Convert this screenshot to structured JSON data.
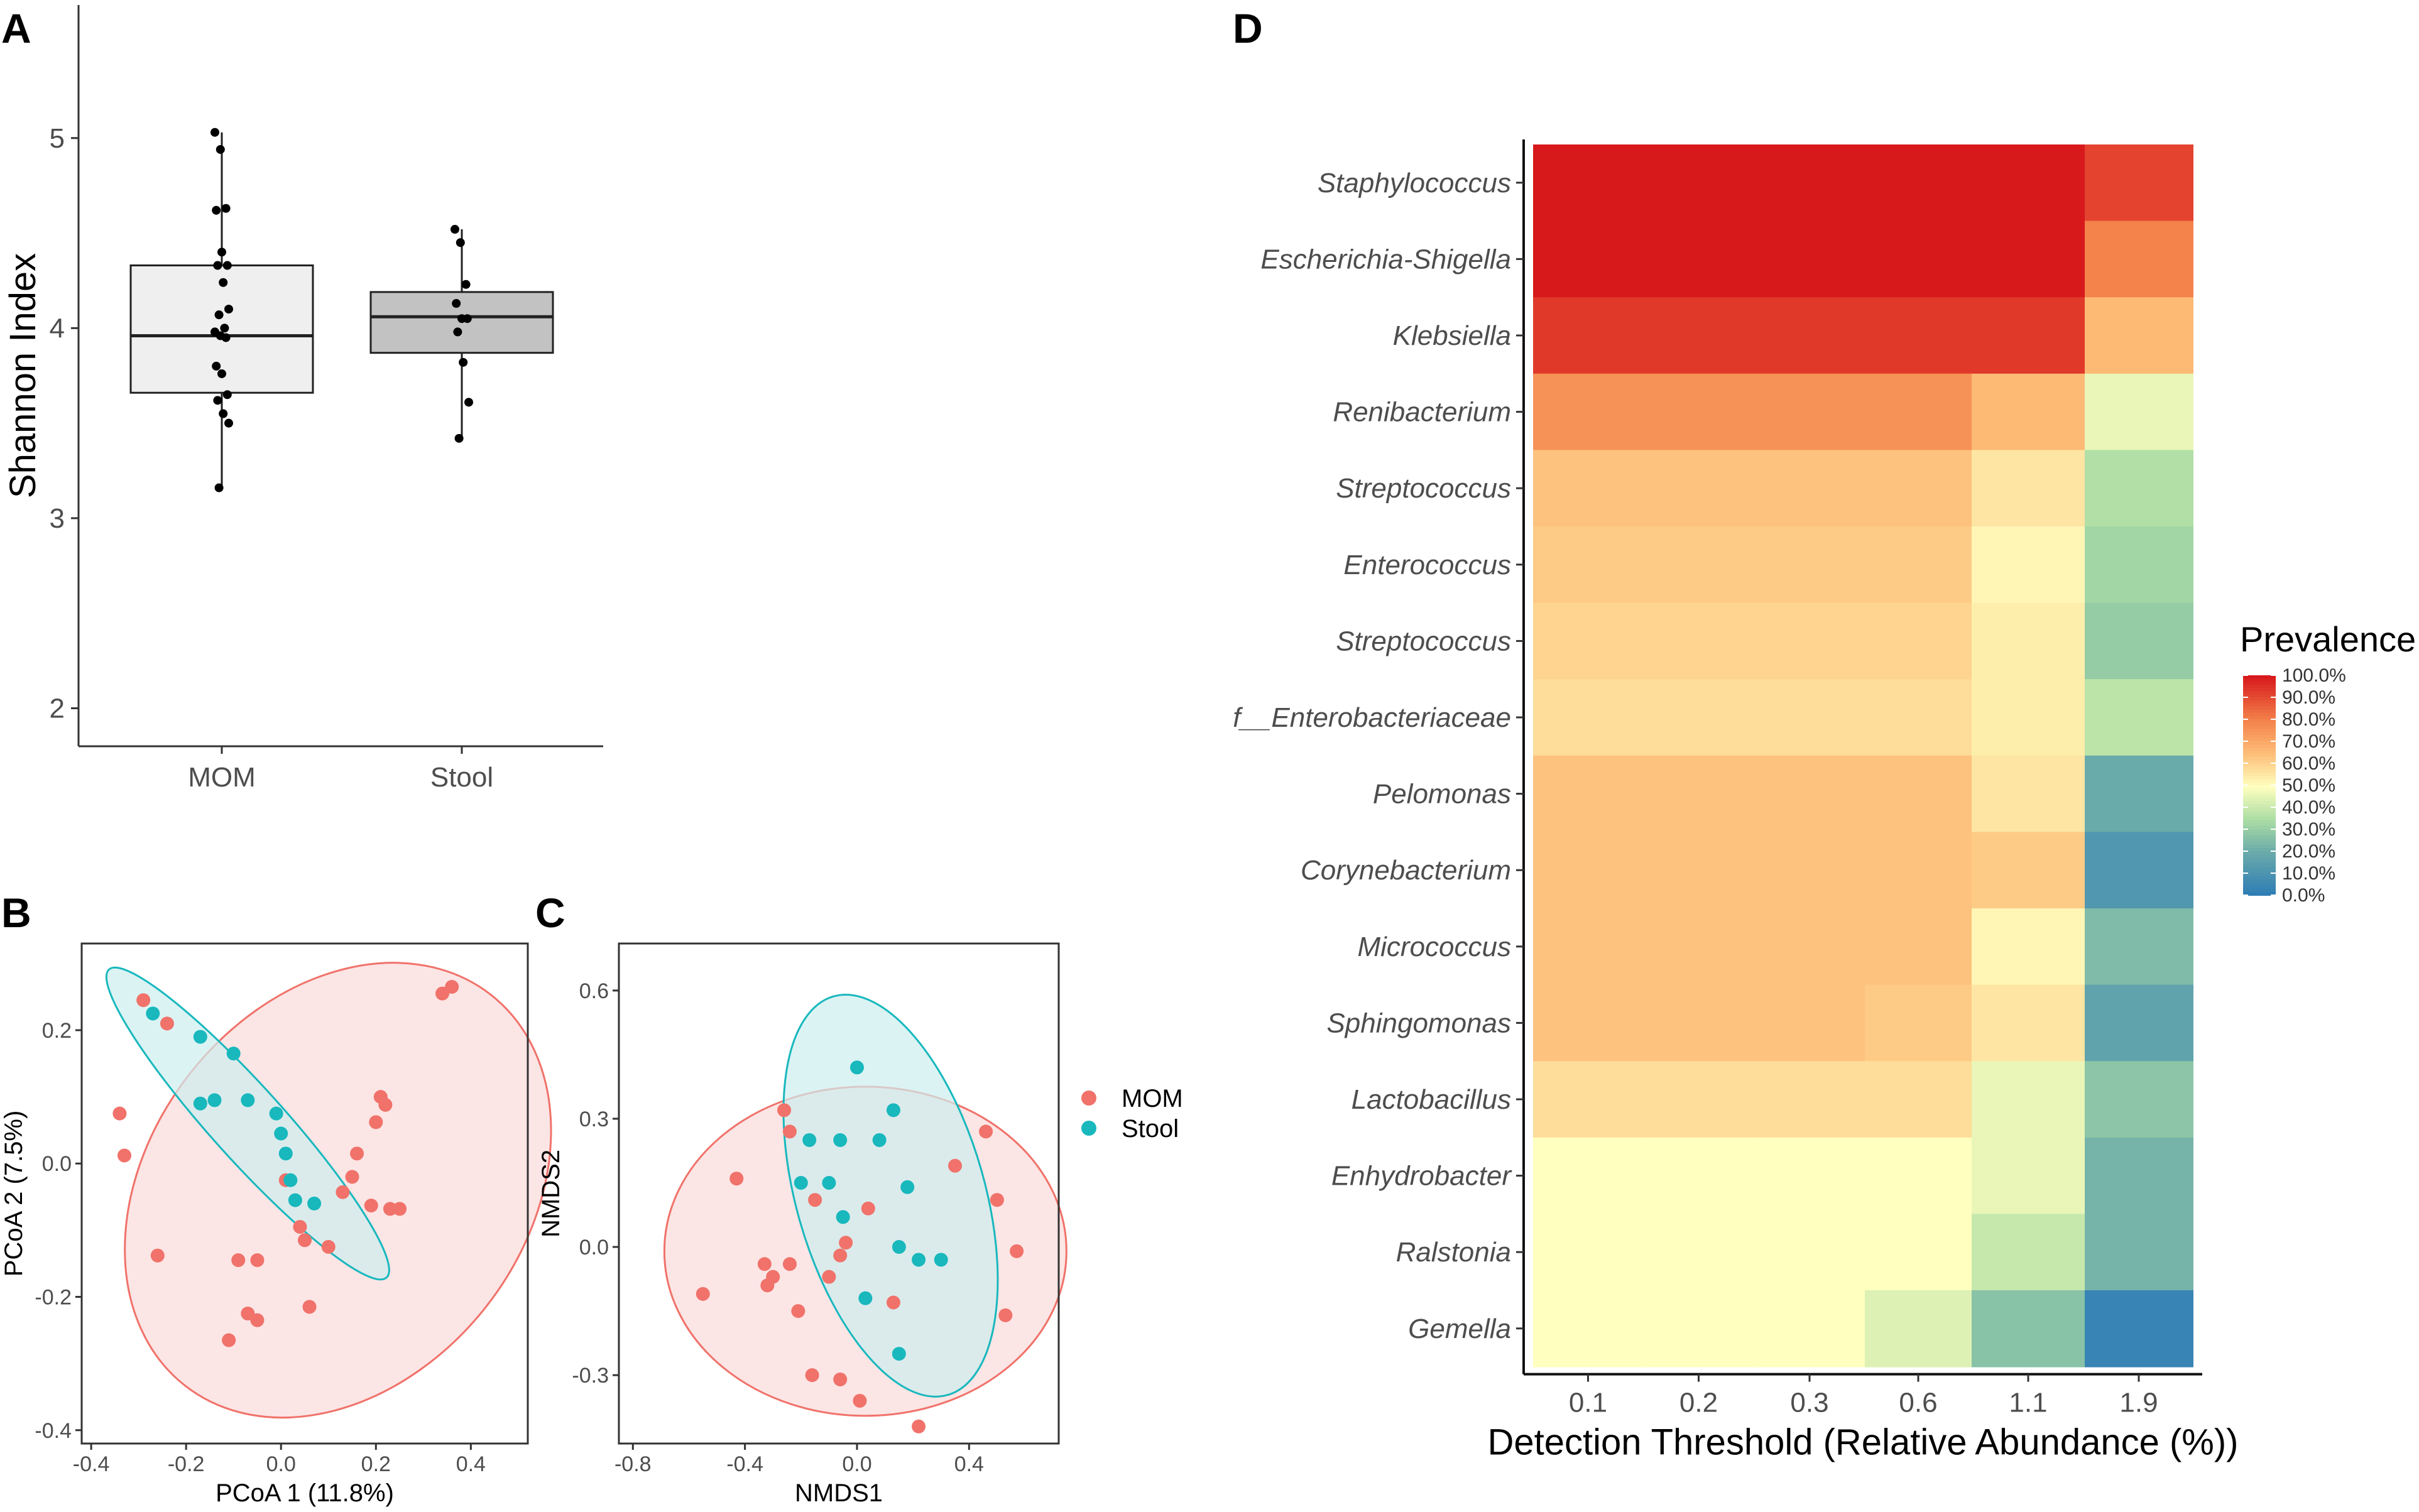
{
  "panels": {
    "A": "A",
    "B": "B",
    "C": "C",
    "D": "D"
  },
  "colors": {
    "mom": "#F0726A",
    "stool": "#18B8BD",
    "mom_fill": "#FBDADA",
    "stool_fill": "#CDEEF0",
    "box_mom": "#EFEFEF",
    "box_stool": "#C2C2C2"
  },
  "chart_data": [
    {
      "id": "A",
      "type": "box",
      "ylabel": "Shannon Index",
      "ylim": [
        1.8,
        5.7
      ],
      "yticks": [
        2,
        3,
        4,
        5
      ],
      "categories": [
        "MOM",
        "Stool"
      ],
      "boxes": [
        {
          "name": "MOM",
          "q1": 3.66,
          "median": 3.96,
          "q3": 4.33,
          "whisker_low": 3.16,
          "whisker_high": 5.03,
          "points": [
            5.03,
            4.94,
            4.63,
            4.62,
            4.4,
            4.33,
            4.33,
            4.24,
            4.1,
            4.07,
            4.0,
            3.98,
            3.96,
            3.95,
            3.8,
            3.76,
            3.65,
            3.62,
            3.55,
            3.5,
            3.16
          ]
        },
        {
          "name": "Stool",
          "q1": 3.87,
          "median": 4.06,
          "q3": 4.19,
          "whisker_low": 3.42,
          "whisker_high": 4.52,
          "points": [
            4.52,
            4.45,
            4.23,
            4.13,
            4.05,
            4.05,
            3.98,
            3.82,
            3.61,
            3.42
          ]
        }
      ]
    },
    {
      "id": "B",
      "type": "scatter",
      "xlabel": "PCoA 1 (11.8%)",
      "ylabel": "PCoA 2 (7.5%)",
      "xlim": [
        -0.42,
        0.52
      ],
      "ylim": [
        -0.42,
        0.33
      ],
      "xticks": [
        "-0.4",
        "-0.2",
        "0.0",
        "0.2",
        "0.4"
      ],
      "yticks": [
        "-0.4",
        "-0.2",
        "0.0",
        "0.2"
      ],
      "series": [
        {
          "name": "MOM",
          "points": [
            [
              -0.29,
              0.245
            ],
            [
              -0.34,
              0.075
            ],
            [
              -0.33,
              0.012
            ],
            [
              -0.26,
              -0.138
            ],
            [
              -0.24,
              0.21
            ],
            [
              -0.11,
              -0.265
            ],
            [
              -0.09,
              -0.145
            ],
            [
              -0.07,
              -0.225
            ],
            [
              -0.05,
              -0.235
            ],
            [
              -0.05,
              -0.145
            ],
            [
              0.01,
              -0.025
            ],
            [
              0.04,
              -0.095
            ],
            [
              0.05,
              -0.115
            ],
            [
              0.06,
              -0.215
            ],
            [
              0.1,
              -0.125
            ],
            [
              0.13,
              -0.043
            ],
            [
              0.16,
              0.015
            ],
            [
              0.19,
              -0.063
            ],
            [
              0.2,
              0.062
            ],
            [
              0.21,
              0.1
            ],
            [
              0.22,
              0.088
            ],
            [
              0.23,
              -0.068
            ],
            [
              0.25,
              -0.068
            ],
            [
              0.34,
              0.255
            ],
            [
              0.36,
              0.265
            ],
            [
              0.15,
              -0.02
            ]
          ]
        },
        {
          "name": "Stool",
          "points": [
            [
              -0.27,
              0.225
            ],
            [
              -0.17,
              0.19
            ],
            [
              -0.14,
              0.095
            ],
            [
              -0.1,
              0.165
            ],
            [
              -0.07,
              0.095
            ],
            [
              -0.01,
              0.075
            ],
            [
              0.0,
              0.045
            ],
            [
              0.01,
              0.015
            ],
            [
              0.02,
              -0.025
            ],
            [
              0.03,
              -0.055
            ],
            [
              0.07,
              -0.06
            ],
            [
              -0.17,
              0.09
            ]
          ]
        }
      ]
    },
    {
      "id": "C",
      "type": "scatter",
      "xlabel": "NMDS1",
      "ylabel": "NMDS2",
      "xlim": [
        -0.85,
        0.72
      ],
      "ylim": [
        -0.46,
        0.71
      ],
      "xticks": [
        "-0.8",
        "-0.4",
        "0.0",
        "0.4"
      ],
      "yticks": [
        "-0.3",
        "0.0",
        "0.3",
        "0.6"
      ],
      "series": [
        {
          "name": "MOM",
          "points": [
            [
              -0.55,
              -0.11
            ],
            [
              -0.43,
              0.16
            ],
            [
              -0.33,
              -0.04
            ],
            [
              -0.32,
              -0.09
            ],
            [
              -0.3,
              -0.07
            ],
            [
              -0.26,
              0.32
            ],
            [
              -0.24,
              0.27
            ],
            [
              -0.24,
              -0.04
            ],
            [
              -0.21,
              -0.15
            ],
            [
              -0.16,
              -0.3
            ],
            [
              -0.1,
              -0.07
            ],
            [
              -0.06,
              -0.02
            ],
            [
              -0.06,
              -0.31
            ],
            [
              -0.04,
              0.01
            ],
            [
              0.01,
              -0.36
            ],
            [
              0.04,
              0.09
            ],
            [
              0.13,
              -0.13
            ],
            [
              0.22,
              -0.42
            ],
            [
              0.46,
              0.27
            ],
            [
              0.5,
              0.11
            ],
            [
              0.53,
              -0.16
            ],
            [
              0.57,
              -0.01
            ],
            [
              -0.15,
              0.11
            ],
            [
              0.35,
              0.19
            ]
          ]
        },
        {
          "name": "Stool",
          "points": [
            [
              -0.2,
              0.15
            ],
            [
              -0.17,
              0.25
            ],
            [
              -0.06,
              0.25
            ],
            [
              -0.05,
              0.07
            ],
            [
              0.0,
              0.42
            ],
            [
              0.03,
              -0.12
            ],
            [
              0.08,
              0.25
            ],
            [
              0.13,
              0.32
            ],
            [
              0.15,
              0.0
            ],
            [
              0.15,
              -0.25
            ],
            [
              0.18,
              0.14
            ],
            [
              0.22,
              -0.03
            ],
            [
              0.3,
              -0.03
            ],
            [
              -0.1,
              0.15
            ]
          ]
        }
      ]
    },
    {
      "id": "D",
      "type": "heatmap",
      "xlabel": "Detection Threshold (Relative Abundance (%))",
      "legend_title": "Prevalence",
      "xticks": [
        "0.1",
        "0.2",
        "0.3",
        "0.6",
        "1.1",
        "1.9"
      ],
      "rows": [
        "Staphylococcus",
        "Escherichia-Shigella",
        "Klebsiella",
        "Renibacterium",
        "Streptococcus",
        "Enterococcus",
        "Streptococcus",
        "f__Enterobacteriaceae",
        "Pelomonas",
        "Corynebacterium",
        "Micrococcus",
        "Sphingomonas",
        "Lactobacillus",
        "Enhydrobacter",
        "Ralstonia",
        "Gemella"
      ],
      "values": [
        [
          100,
          100,
          100,
          100,
          100,
          92
        ],
        [
          100,
          100,
          100,
          100,
          100,
          80
        ],
        [
          94,
          94,
          94,
          94,
          94,
          66
        ],
        [
          76,
          76,
          76,
          76,
          66,
          46
        ],
        [
          64,
          64,
          64,
          64,
          56,
          36
        ],
        [
          62,
          62,
          62,
          62,
          52,
          33
        ],
        [
          60,
          60,
          60,
          60,
          54,
          30
        ],
        [
          58,
          58,
          58,
          58,
          54,
          38
        ],
        [
          64,
          64,
          64,
          64,
          56,
          20
        ],
        [
          64,
          64,
          64,
          64,
          62,
          12
        ],
        [
          64,
          64,
          64,
          64,
          52,
          25
        ],
        [
          64,
          64,
          64,
          62,
          56,
          17
        ],
        [
          58,
          58,
          58,
          58,
          46,
          28
        ],
        [
          50,
          50,
          50,
          50,
          46,
          23
        ],
        [
          50,
          50,
          50,
          50,
          40,
          23
        ],
        [
          50,
          50,
          50,
          44,
          27,
          4
        ]
      ],
      "colorbar_labels": [
        "100.0%",
        "90.0%",
        "80.0%",
        "70.0%",
        "60.0%",
        "50.0%",
        "40.0%",
        "30.0%",
        "20.0%",
        "10.0%",
        "0.0%"
      ]
    }
  ]
}
